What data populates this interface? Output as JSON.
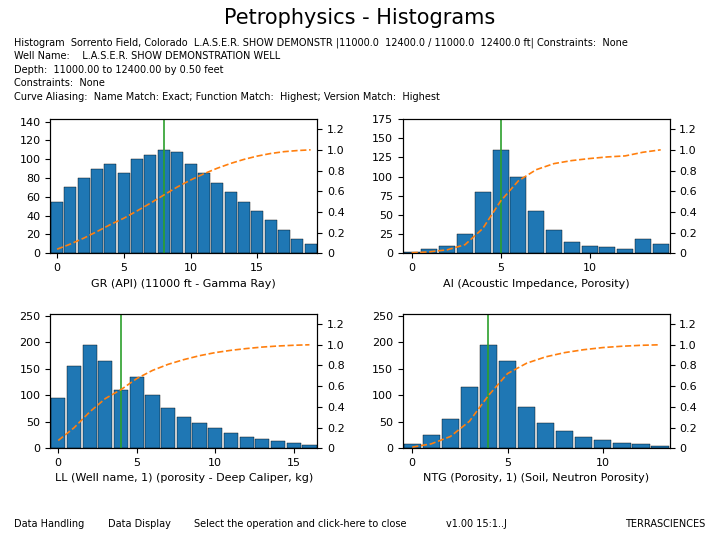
{
  "title": "Petrophysics - Histograms",
  "header_notes": [
    "Histogram  Sorrento Field, Colorado  L.A.S.E.R. SHOW DEMONSTR |11000.0  12400.0 / 11000.0  12400.0 ft| Constraints:  None",
    "Well Name:    L.A.S.E.R. SHOW DEMONSTRATION WELL",
    "Depth:  11000.00 to 12400.00 by 0.50 feet",
    "Constraints:  None",
    "Curve Aliasing:  Name Match: Exact; Function Match:  Highest; Version Match:  Highest"
  ],
  "footer_notes": [
    "Data Handling",
    "Data Display",
    "Select the operation and click-here to close",
    "v1.00 15:1..J",
    "TERRASCIENCES"
  ],
  "chart_data": [
    {
      "type": "bar",
      "x_label": "GR (API) (11000 ft - Gamma Ray)",
      "x": [
        0,
        1,
        2,
        3,
        4,
        5,
        6,
        7,
        8,
        9,
        10,
        11,
        12,
        13,
        14,
        15,
        16,
        17,
        18,
        19
      ],
      "xlim": [
        -0.5,
        19.5
      ],
      "xticks": [
        0,
        5,
        10,
        15
      ],
      "ylim": [
        0,
        143
      ],
      "yticks": [
        0,
        20,
        40,
        60,
        80,
        100,
        120,
        140
      ],
      "y2lim": [
        0,
        1.3
      ],
      "y2ticks": [
        0,
        0.2,
        0.4,
        0.6,
        0.8,
        1.0,
        1.2
      ],
      "series": [
        {
          "type": "bar",
          "color": "#1f77b4",
          "values": [
            55,
            70,
            80,
            90,
            95,
            85,
            100,
            105,
            110,
            108,
            95,
            85,
            75,
            65,
            55,
            45,
            35,
            25,
            15,
            10
          ]
        },
        {
          "type": "line",
          "axis": "y2",
          "color": "#ff7f0e",
          "line_style": "dashed",
          "values": [
            0.039202,
            0.089095,
            0.146115,
            0.210264,
            0.277976,
            0.33856,
            0.409836,
            0.484676,
            0.563079,
            0.640057,
            0.707769,
            0.768354,
            0.82181,
            0.86814,
            0.907341,
            0.939416,
            0.964362,
            0.982181,
            0.992872,
            1.0
          ]
        }
      ],
      "vlines": [
        {
          "x": 8,
          "color": "#2ca02c"
        }
      ]
    },
    {
      "type": "bar",
      "x_label": "AI (Acoustic Impedance, Porosity)",
      "x": [
        0,
        1,
        2,
        3,
        4,
        5,
        6,
        7,
        8,
        9,
        10,
        11,
        12,
        13,
        14
      ],
      "xlim": [
        -0.5,
        14.5
      ],
      "xticks": [
        0,
        5,
        10
      ],
      "ylim": [
        0,
        175.5
      ],
      "yticks": [
        0,
        25,
        50,
        75,
        100,
        125,
        150,
        175
      ],
      "y2lim": [
        0,
        1.3
      ],
      "y2ticks": [
        0,
        0.2,
        0.4,
        0.6,
        0.8,
        1.0,
        1.2
      ],
      "series": [
        {
          "type": "bar",
          "color": "#1f77b4",
          "values": [
            2,
            5,
            10,
            25,
            80,
            135,
            100,
            55,
            30,
            15,
            10,
            8,
            5,
            18,
            12
          ]
        },
        {
          "type": "line",
          "axis": "y2",
          "color": "#ff7f0e",
          "line_style": "dashed",
          "values": [
            0.003922,
            0.013725,
            0.033333,
            0.082353,
            0.239216,
            0.503922,
            0.7,
            0.807843,
            0.866667,
            0.896078,
            0.915686,
            0.931373,
            0.941176,
            0.976471,
            1.0
          ]
        }
      ],
      "vlines": [
        {
          "x": 5,
          "color": "#2ca02c"
        }
      ]
    },
    {
      "type": "bar",
      "x_label": "LL (Well name, 1) (porosity - Deep Caliper, kg)",
      "x": [
        0,
        1,
        2,
        3,
        4,
        5,
        6,
        7,
        8,
        9,
        10,
        11,
        12,
        13,
        14,
        15,
        16
      ],
      "xlim": [
        -0.5,
        16.5
      ],
      "xticks": [
        0,
        5,
        10,
        15
      ],
      "ylim": [
        0,
        253.5
      ],
      "yticks": [
        0,
        50,
        100,
        150,
        200,
        250
      ],
      "y2lim": [
        0,
        1.3
      ],
      "y2ticks": [
        0,
        0.2,
        0.4,
        0.6,
        0.8,
        1.0,
        1.2
      ],
      "series": [
        {
          "type": "bar",
          "color": "#1f77b4",
          "values": [
            95,
            155,
            195,
            165,
            110,
            135,
            100,
            75,
            58,
            48,
            38,
            28,
            22,
            18,
            13,
            9,
            6
          ]
        },
        {
          "type": "line",
          "axis": "y2",
          "color": "#ff7f0e",
          "line_style": "dashed",
          "values": [
            0.074803,
            0.19685,
            0.350394,
            0.480315,
            0.566929,
            0.673228,
            0.751969,
            0.811024,
            0.856693,
            0.894488,
            0.924409,
            0.946457,
            0.96378,
            0.977953,
            0.988189,
            0.995276,
            1.0
          ]
        }
      ],
      "vlines": [
        {
          "x": 4,
          "color": "#2ca02c"
        }
      ]
    },
    {
      "type": "bar",
      "x_label": "NTG (Porosity, 1) (Soil, Neutron Porosity)",
      "x": [
        0,
        1,
        2,
        3,
        4,
        5,
        6,
        7,
        8,
        9,
        10,
        11,
        12,
        13
      ],
      "xlim": [
        -0.5,
        13.5
      ],
      "xticks": [
        0,
        5,
        10
      ],
      "ylim": [
        0,
        253.5
      ],
      "yticks": [
        0,
        50,
        100,
        150,
        200,
        250
      ],
      "y2lim": [
        0,
        1.3
      ],
      "y2ticks": [
        0,
        0.2,
        0.4,
        0.6,
        0.8,
        1.0,
        1.2
      ],
      "series": [
        {
          "type": "bar",
          "color": "#1f77b4",
          "values": [
            8,
            25,
            55,
            115,
            195,
            165,
            78,
            48,
            32,
            22,
            16,
            10,
            7,
            4
          ]
        },
        {
          "type": "line",
          "axis": "y2",
          "color": "#ff7f0e",
          "line_style": "dashed",
          "values": [
            0.010256,
            0.042308,
            0.112821,
            0.260256,
            0.510256,
            0.721795,
            0.821795,
            0.883333,
            0.924359,
            0.952564,
            0.973077,
            0.985897,
            0.994872,
            1.0
          ]
        }
      ],
      "vlines": [
        {
          "x": 4,
          "color": "#2ca02c"
        }
      ]
    }
  ]
}
